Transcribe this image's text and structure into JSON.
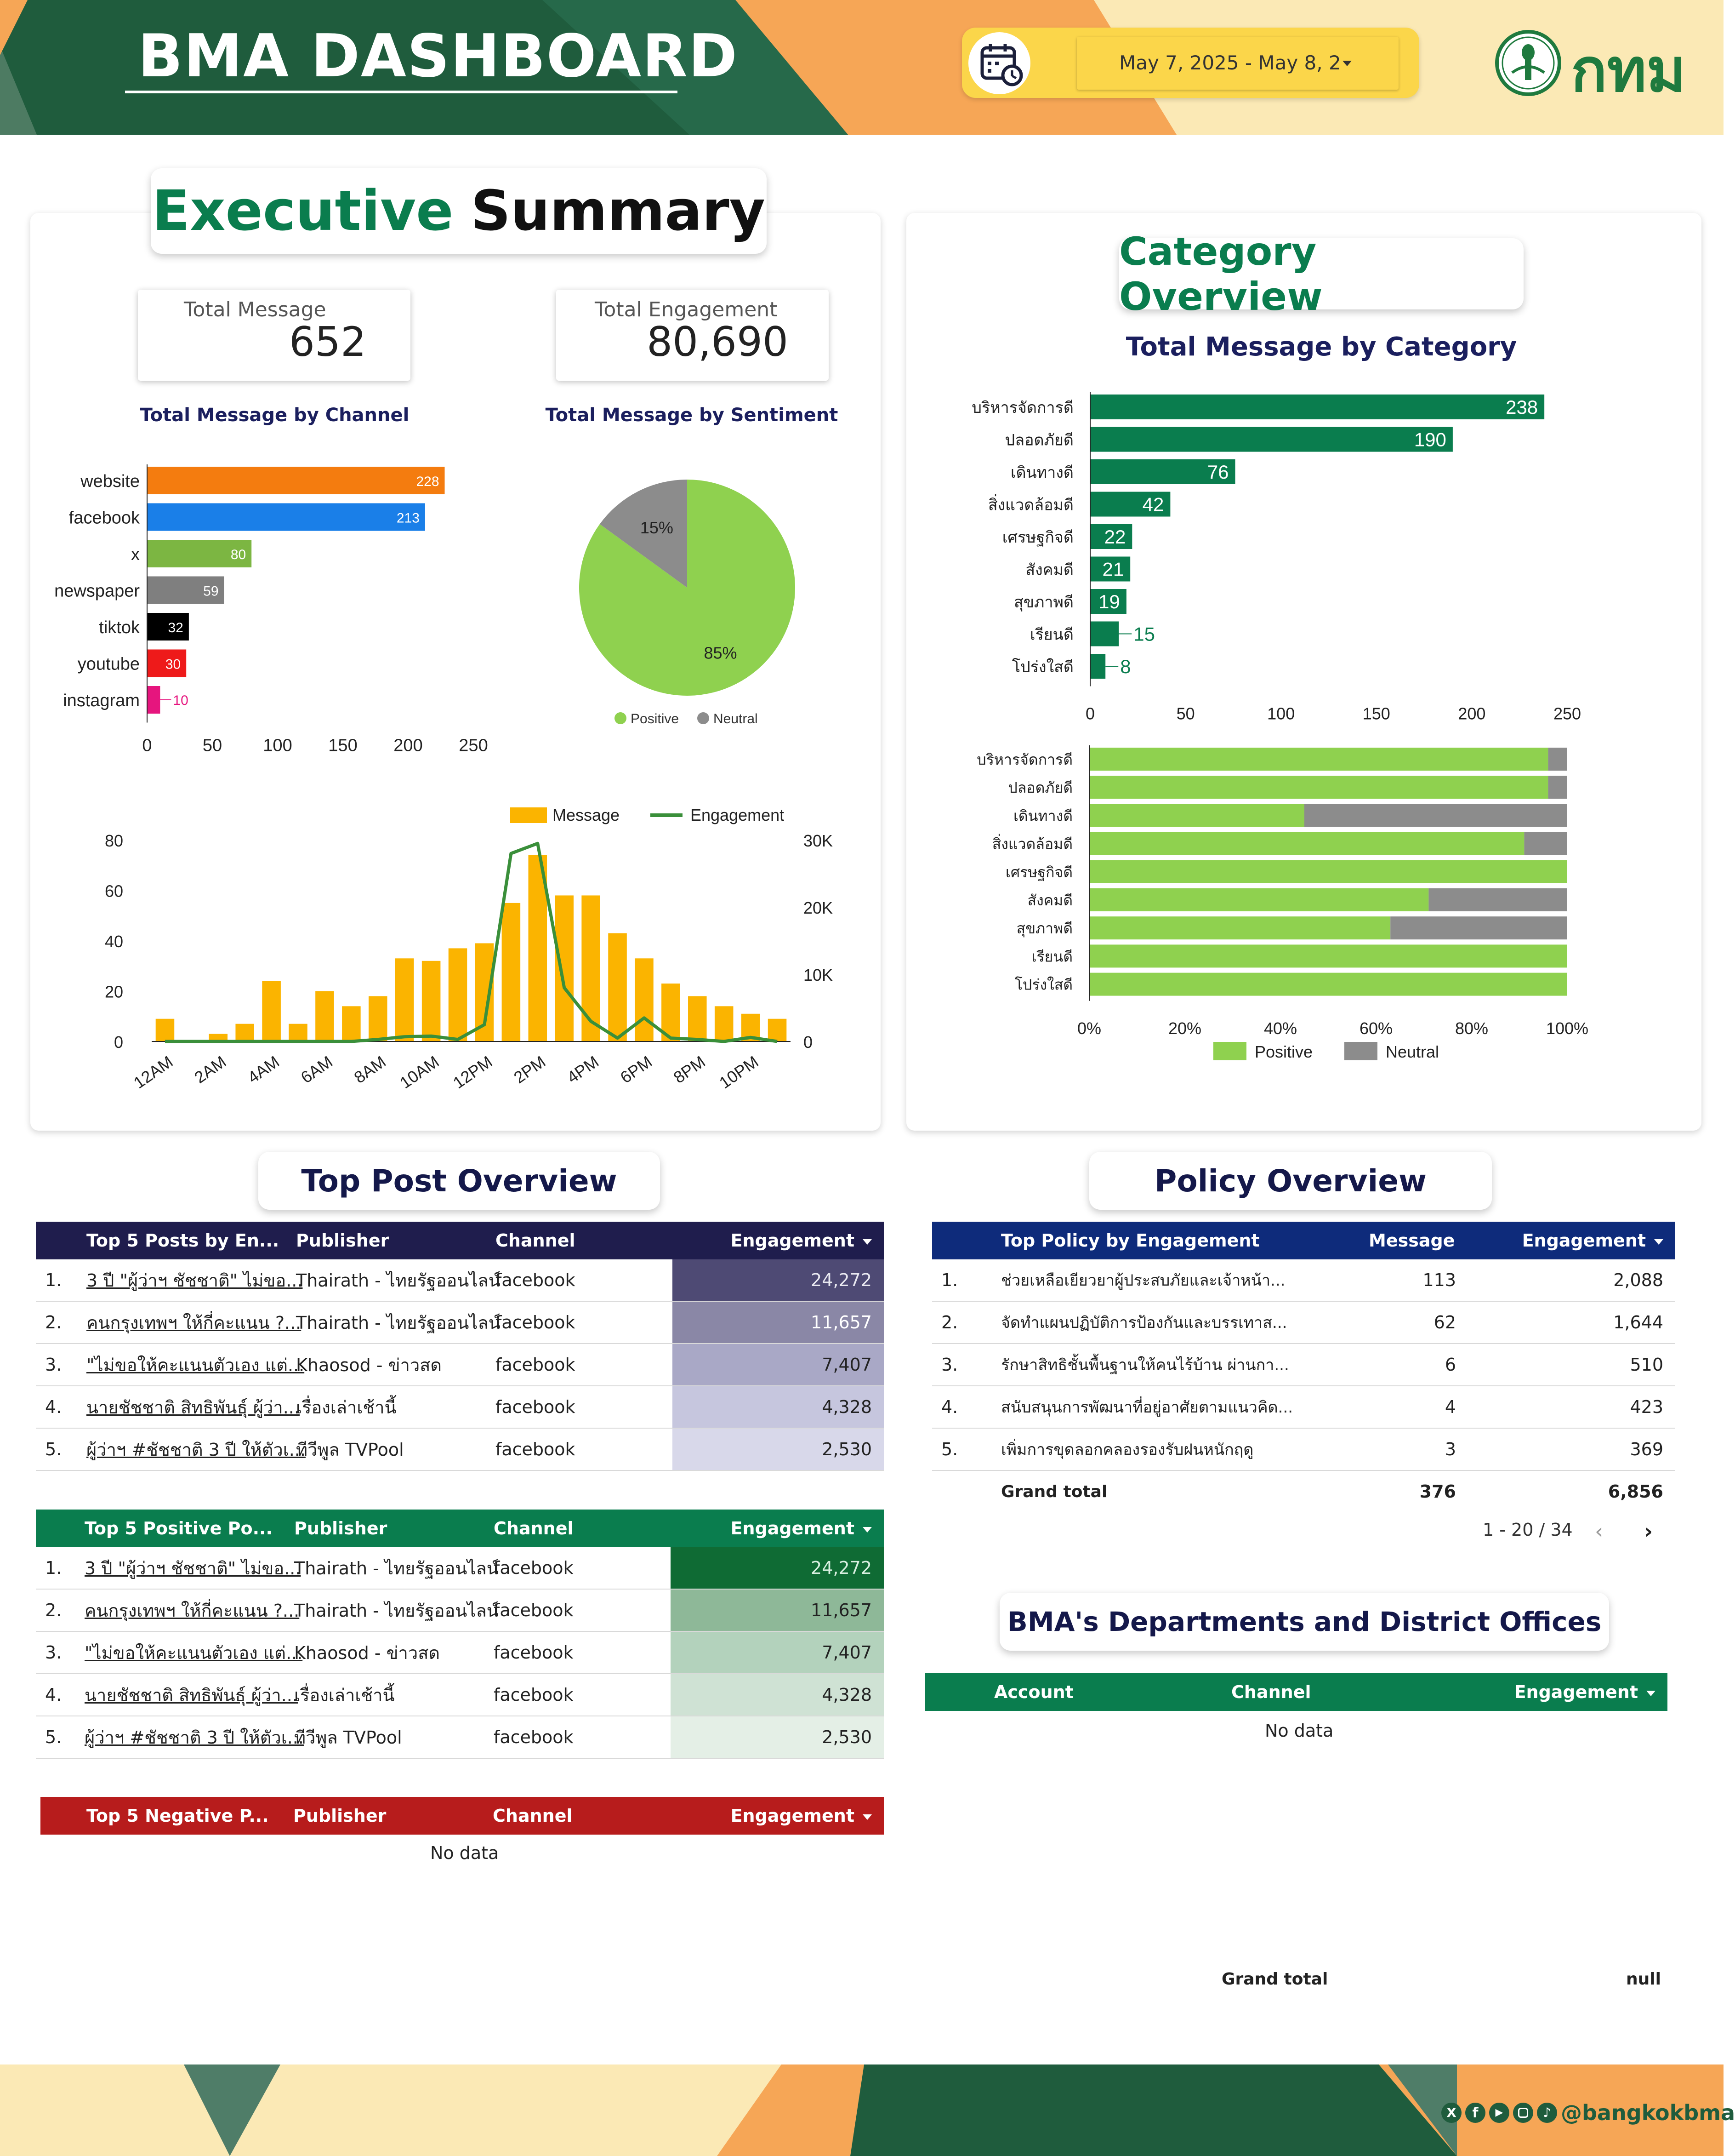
{
  "header": {
    "title": "BMA DASHBOARD",
    "date_range": "May 7, 2025 - May 8, 2",
    "logo_text": "กทม",
    "colors": {
      "dark_green": "#1f5c3d",
      "orange": "#f6a656",
      "cream": "#fbe9b5",
      "yellow": "#fbd64a"
    }
  },
  "executive": {
    "title_part1": "Executive",
    "title_part2": "Summary",
    "total_message_label": "Total Message",
    "total_message_value": "652",
    "total_engagement_label": "Total Engagement",
    "total_engagement_value": "80,690"
  },
  "category": {
    "title": "Category Overview"
  },
  "top_post": {
    "title": "Top Post Overview",
    "engagement_table": {
      "headers": [
        "Top 5 Posts by En...",
        "Publisher",
        "Channel",
        "Engagement"
      ],
      "rows": [
        {
          "idx": "1.",
          "post": "3 ปี \"ผู้ว่าฯ ชัชชาติ\" ไม่ขอ...",
          "publisher": "Thairath - ไทยรัฐออนไลน์",
          "channel": "facebook",
          "engagement": "24,272"
        },
        {
          "idx": "2.",
          "post": "คนกรุงเทพฯ ให้กี่คะแนน ?...",
          "publisher": "Thairath - ไทยรัฐออนไลน์",
          "channel": "facebook",
          "engagement": "11,657"
        },
        {
          "idx": "3.",
          "post": "\"ไม่ขอให้คะแนนตัวเอง แต่...",
          "publisher": "Khaosod - ข่าวสด",
          "channel": "facebook",
          "engagement": "7,407"
        },
        {
          "idx": "4.",
          "post": "นายชัชชาติ สิทธิพันธุ์ ผู้ว่า...",
          "publisher": "เรื่องเล่าเช้านี้",
          "channel": "facebook",
          "engagement": "4,328"
        },
        {
          "idx": "5.",
          "post": "ผู้ว่าฯ #ชัชชาติ 3 ปี ให้ตัวเ...",
          "publisher": "ทีวีพูล TVPool",
          "channel": "facebook",
          "engagement": "2,530"
        }
      ]
    },
    "positive_table": {
      "headers": [
        "Top 5 Positive Po...",
        "Publisher",
        "Channel",
        "Engagement"
      ],
      "rows": [
        {
          "idx": "1.",
          "post": "3 ปี \"ผู้ว่าฯ ชัชชาติ\" ไม่ขอ...",
          "publisher": "Thairath - ไทยรัฐออนไลน์",
          "channel": "facebook",
          "engagement": "24,272"
        },
        {
          "idx": "2.",
          "post": "คนกรุงเทพฯ ให้กี่คะแนน ?...",
          "publisher": "Thairath - ไทยรัฐออนไลน์",
          "channel": "facebook",
          "engagement": "11,657"
        },
        {
          "idx": "3.",
          "post": "\"ไม่ขอให้คะแนนตัวเอง แต่...",
          "publisher": "Khaosod - ข่าวสด",
          "channel": "facebook",
          "engagement": "7,407"
        },
        {
          "idx": "4.",
          "post": "นายชัชชาติ สิทธิพันธุ์ ผู้ว่า...",
          "publisher": "เรื่องเล่าเช้านี้",
          "channel": "facebook",
          "engagement": "4,328"
        },
        {
          "idx": "5.",
          "post": "ผู้ว่าฯ #ชัชชาติ 3 ปี ให้ตัวเ...",
          "publisher": "ทีวีพูล TVPool",
          "channel": "facebook",
          "engagement": "2,530"
        }
      ]
    },
    "negative_table": {
      "headers": [
        "Top 5 Negative P...",
        "Publisher",
        "Channel",
        "Engagement"
      ],
      "no_data": "No data",
      "grand_total_label": "Grand total",
      "grand_total_value": "null"
    }
  },
  "policy": {
    "title": "Policy Overview",
    "headers": [
      "Top Policy by Engagement",
      "Message",
      "Engagement"
    ],
    "rows": [
      {
        "idx": "1.",
        "policy": "ช่วยเหลือเยียวยาผู้ประสบภัยและเจ้าหน้า...",
        "message": "113",
        "engagement": "2,088"
      },
      {
        "idx": "2.",
        "policy": "จัดทำแผนปฏิบัติการป้องกันและบรรเทาส...",
        "message": "62",
        "engagement": "1,644"
      },
      {
        "idx": "3.",
        "policy": "รักษาสิทธิชั้นพื้นฐานให้คนไร้บ้าน ผ่านกา...",
        "message": "6",
        "engagement": "510"
      },
      {
        "idx": "4.",
        "policy": "สนับสนุนการพัฒนาที่อยู่อาศัยตามแนวคิด...",
        "message": "4",
        "engagement": "423"
      },
      {
        "idx": "5.",
        "policy": "เพิ่มการขุดลอกคลองรองรับฝนหนักฤดู",
        "message": "3",
        "engagement": "369"
      }
    ],
    "grand_total_label": "Grand total",
    "grand_total_message": "376",
    "grand_total_engagement": "6,856",
    "pagination": "1 - 20 / 34"
  },
  "departments": {
    "title": "BMA's Departments and District Offices",
    "headers": [
      "Account",
      "Channel",
      "Engagement"
    ],
    "no_data": "No data"
  },
  "footer": {
    "social_handle": "@bangkokbma",
    "social_icons": [
      "x-icon",
      "facebook-icon",
      "youtube-icon",
      "instagram-icon",
      "tiktok-icon"
    ]
  },
  "chart_data": [
    {
      "type": "bar",
      "orientation": "horizontal",
      "title": "Total Message by Channel",
      "categories": [
        "website",
        "facebook",
        "x",
        "newspaper",
        "tiktok",
        "youtube",
        "instagram"
      ],
      "values": [
        228,
        213,
        80,
        59,
        32,
        30,
        10
      ],
      "colors": [
        "#f47c0f",
        "#1a7fe8",
        "#7cb642",
        "#7f7f7f",
        "#000000",
        "#ee1a1a",
        "#e6157e"
      ],
      "xticks": [
        "0",
        "50",
        "100",
        "150",
        "200",
        "250"
      ],
      "xlim": [
        0,
        250
      ]
    },
    {
      "type": "pie",
      "title": "Total Message by Sentiment",
      "labels": [
        "Positive",
        "Neutral"
      ],
      "values": [
        85,
        15
      ],
      "value_labels": [
        "85%",
        "15%"
      ],
      "colors": [
        "#8fd14f",
        "#8c8c8c"
      ],
      "legend": "bottom"
    },
    {
      "type": "bar+line",
      "categories": [
        "12AM",
        "1AM",
        "2AM",
        "3AM",
        "4AM",
        "5AM",
        "6AM",
        "7AM",
        "8AM",
        "9AM",
        "10AM",
        "11AM",
        "12PM",
        "1PM",
        "2PM",
        "3PM",
        "4PM",
        "5PM",
        "6PM",
        "7PM",
        "8PM",
        "9PM",
        "10PM",
        "11PM"
      ],
      "xtick_labels": [
        "12AM",
        "2AM",
        "4AM",
        "6AM",
        "8AM",
        "10AM",
        "12PM",
        "2PM",
        "4PM",
        "6PM",
        "8PM",
        "10PM"
      ],
      "series": [
        {
          "name": "Message",
          "type": "bar",
          "axis": "left",
          "color": "#fbb400",
          "values": [
            9,
            0,
            3,
            7,
            24,
            7,
            20,
            14,
            18,
            33,
            32,
            37,
            39,
            55,
            74,
            58,
            58,
            43,
            33,
            23,
            18,
            14,
            11,
            9
          ]
        },
        {
          "name": "Engagement",
          "type": "line",
          "axis": "right",
          "color": "#3a8f3a",
          "values": [
            0,
            0,
            0,
            0,
            0,
            0,
            0,
            0,
            300,
            700,
            800,
            300,
            2500,
            28000,
            29500,
            8000,
            3000,
            500,
            3500,
            500,
            300,
            0,
            600,
            0
          ]
        }
      ],
      "y_left_ticks": [
        "0",
        "20",
        "40",
        "60",
        "80"
      ],
      "ylim_left": [
        0,
        80
      ],
      "y_right_ticks": [
        "0",
        "10K",
        "20K",
        "30K"
      ],
      "ylim_right": [
        0,
        30000
      ],
      "legend": "top-right"
    },
    {
      "type": "bar",
      "orientation": "horizontal",
      "title": "Total Message by Category",
      "categories": [
        "บริหารจัดการดี",
        "ปลอดภัยดี",
        "เดินทางดี",
        "สิ่งแวดล้อมดี",
        "เศรษฐกิจดี",
        "สังคมดี",
        "สุขภาพดี",
        "เรียนดี",
        "โปร่งใสดี"
      ],
      "values": [
        238,
        190,
        76,
        42,
        22,
        21,
        19,
        15,
        8
      ],
      "color": "#0a7d4e",
      "xticks": [
        "0",
        "50",
        "100",
        "150",
        "200",
        "250"
      ],
      "xlim": [
        0,
        250
      ]
    },
    {
      "type": "bar",
      "orientation": "horizontal",
      "stacked": "percent",
      "categories": [
        "บริหารจัดการดี",
        "ปลอดภัยดี",
        "เดินทางดี",
        "สิ่งแวดล้อมดี",
        "เศรษฐกิจดี",
        "สังคมดี",
        "สุขภาพดี",
        "เรียนดี",
        "โปร่งใสดี"
      ],
      "series": [
        {
          "name": "Positive",
          "color": "#8fd14f",
          "values": [
            96,
            96,
            45,
            91,
            100,
            71,
            63,
            100,
            100
          ]
        },
        {
          "name": "Neutral",
          "color": "#8c8c8c",
          "values": [
            4,
            4,
            55,
            9,
            0,
            29,
            37,
            0,
            0
          ]
        }
      ],
      "xticks": [
        "0%",
        "20%",
        "40%",
        "60%",
        "80%",
        "100%"
      ],
      "xlim": [
        0,
        100
      ],
      "legend": "bottom"
    }
  ]
}
